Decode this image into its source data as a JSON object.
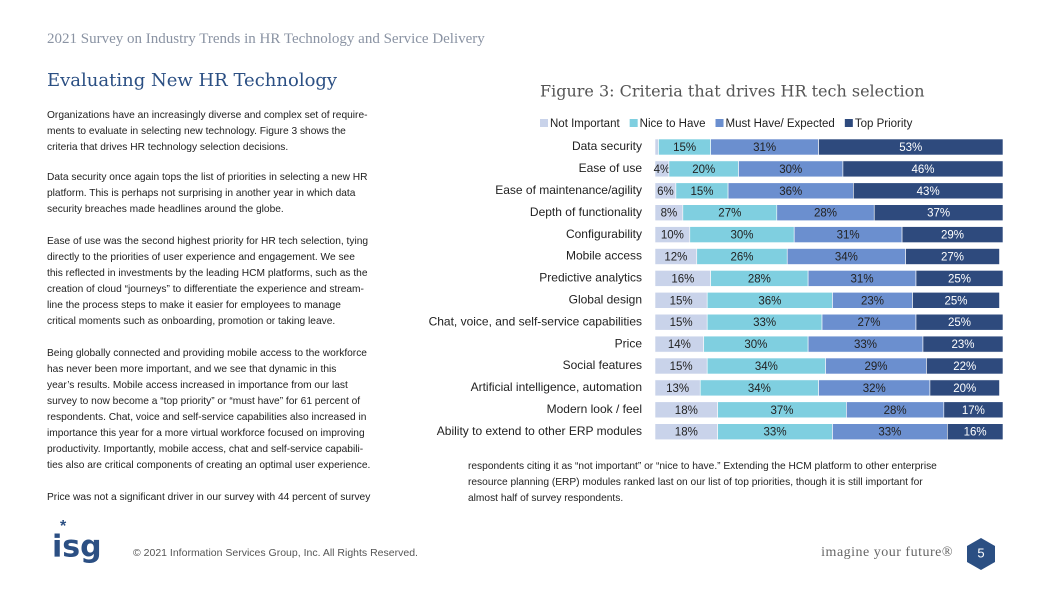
{
  "header": {
    "running_title": "2021 Survey on Industry Trends in HR Technology and Service Delivery",
    "title": "Evaluating New HR Technology"
  },
  "body": {
    "left_paragraphs": [
      [
        "Organizations have an increasingly diverse and complex set of require-",
        "ments to evaluate in selecting new technology. Figure 3 shows the",
        "criteria that drives HR technology selection decisions."
      ],
      [
        "Data security once again tops the list of priorities in selecting a new HR",
        "platform. This is perhaps not surprising in another year in which data",
        "security breaches made headlines around the globe."
      ],
      [
        "Ease of use was the second highest priority for HR tech selection, tying",
        "directly to the priorities of user experience and engagement. We see",
        "this reflected in investments by the leading HCM platforms, such as the",
        "creation of cloud “journeys” to differentiate the experience and stream-",
        "line the process steps to make it easier for employees to manage",
        "critical moments such as onboarding, promotion or taking leave."
      ],
      [
        "Being globally connected and providing mobile access to the workforce",
        "has never been more important, and we see that dynamic in this",
        "year’s results. Mobile access increased in importance from our last",
        "survey to now become a “top priority” or “must have” for 61 percent of",
        "respondents. Chat, voice and self-service capabilities also increased in",
        "importance this year for a more virtual workforce focused on improving",
        "productivity. Importantly, mobile access, chat and self-service capabili-",
        "ties also are critical components of creating an optimal user experience."
      ],
      [
        "Price was not a significant driver in our survey with 44 percent of survey"
      ]
    ],
    "right_paragraph": [
      "respondents citing it as “not important” or “nice to have.” Extending the HCM platform to other enterprise",
      "resource planning (ERP) modules ranked last on our list of top priorities, though it is still important for",
      "almost half of survey respondents."
    ]
  },
  "chart_data": {
    "type": "stacked-bar-horizontal",
    "title": "Figure 3: Criteria that drives HR tech selection",
    "categories": [
      "Data security",
      "Ease of use",
      "Ease of maintenance/agility",
      "Depth of functionality",
      "Configurability",
      "Mobile access",
      "Predictive analytics",
      "Global design",
      "Chat, voice, and self-service capabilities",
      "Price",
      "Social features",
      "Artificial intelligence, automation",
      "Modern look / feel",
      "Ability to extend to other ERP modules"
    ],
    "series": [
      {
        "name": "Not Important",
        "color": "#c9d3ea",
        "values": [
          1,
          4,
          6,
          8,
          10,
          12,
          16,
          15,
          15,
          14,
          15,
          13,
          18,
          18
        ],
        "value_labels": [
          null,
          "4%",
          "6%",
          "8%",
          "10%",
          "12%",
          "16%",
          "15%",
          "15%",
          "14%",
          "15%",
          "13%",
          "18%",
          "18%"
        ]
      },
      {
        "name": "Nice to Have",
        "color": "#7fcfe0",
        "values": [
          15,
          20,
          15,
          27,
          30,
          26,
          28,
          36,
          33,
          30,
          34,
          34,
          37,
          33
        ],
        "value_labels": [
          "15%",
          "20%",
          "15%",
          "27%",
          "30%",
          "26%",
          "28%",
          "36%",
          "33%",
          "30%",
          "34%",
          "34%",
          "37%",
          "33%"
        ]
      },
      {
        "name": "Must Have/ Expected",
        "color": "#6b8fcf",
        "values": [
          31,
          30,
          36,
          28,
          31,
          34,
          31,
          23,
          27,
          33,
          29,
          32,
          28,
          33
        ],
        "value_labels": [
          "31%",
          "30%",
          "36%",
          "28%",
          "31%",
          "34%",
          "31%",
          "23%",
          "27%",
          "33%",
          "29%",
          "32%",
          "28%",
          "33%"
        ]
      },
      {
        "name": "Top Priority",
        "color": "#2e4a7d",
        "values": [
          53,
          46,
          43,
          37,
          29,
          27,
          25,
          25,
          25,
          23,
          22,
          20,
          17,
          16
        ],
        "value_labels": [
          "53%",
          "46%",
          "43%",
          "37%",
          "29%",
          "27%",
          "25%",
          "25%",
          "25%",
          "23%",
          "22%",
          "20%",
          "17%",
          "16%"
        ]
      }
    ],
    "xlim": [
      0,
      100
    ],
    "legend": "top"
  },
  "footer": {
    "logo": "isg",
    "copyright": "© 2021 Information Services Group, Inc. All Rights Reserved.",
    "tagline": "imagine your future®",
    "page": "5"
  }
}
